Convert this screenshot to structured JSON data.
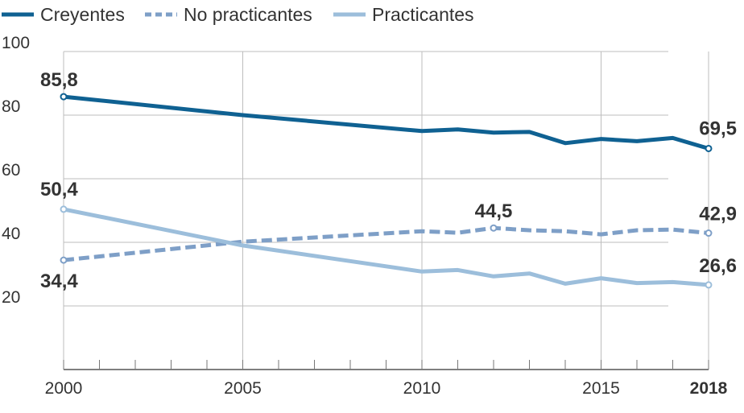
{
  "chart_data": {
    "type": "line",
    "x": [
      2000,
      2005,
      2010,
      2011,
      2012,
      2013,
      2014,
      2015,
      2016,
      2017,
      2018
    ],
    "xticks": [
      "2000",
      "2005",
      "2010",
      "2015",
      "2018"
    ],
    "yticks": [
      "100",
      "80",
      "60",
      "40",
      "20"
    ],
    "ylim": [
      0,
      100
    ],
    "xlim": [
      2000,
      2018
    ],
    "grid": true,
    "legend_position": "top-left",
    "series": [
      {
        "name": "Creyentes",
        "style": "solid",
        "color": "#0f6192",
        "values": [
          85.8,
          80.0,
          75.0,
          75.5,
          74.5,
          74.7,
          71.2,
          72.5,
          71.8,
          72.8,
          69.5
        ]
      },
      {
        "name": "No practicantes",
        "style": "dashed",
        "color": "#7e9fc7",
        "values": [
          34.4,
          40.2,
          43.5,
          43.0,
          44.5,
          43.8,
          43.5,
          42.5,
          43.8,
          44.0,
          42.9
        ]
      },
      {
        "name": "Practicantes",
        "style": "solid",
        "color": "#9cbedb",
        "values": [
          50.4,
          39.0,
          30.8,
          31.3,
          29.3,
          30.2,
          27.0,
          28.7,
          27.2,
          27.5,
          26.6
        ]
      }
    ],
    "annotations": [
      {
        "text": "85,8",
        "series": 0,
        "index": 0
      },
      {
        "text": "69,5",
        "series": 0,
        "index": 10
      },
      {
        "text": "44,5",
        "series": 1,
        "index": 4
      },
      {
        "text": "34,4",
        "series": 1,
        "index": 0
      },
      {
        "text": "42,9",
        "series": 1,
        "index": 10
      },
      {
        "text": "50,4",
        "series": 2,
        "index": 0
      },
      {
        "text": "26,6",
        "series": 2,
        "index": 10
      }
    ]
  }
}
